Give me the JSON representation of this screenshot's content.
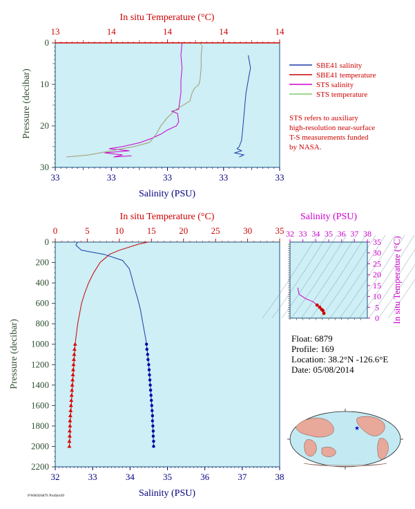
{
  "colors": {
    "plot_bg": "#cdeff5",
    "red": "#cc0000",
    "blue": "#000080",
    "magenta": "#cc00cc",
    "green": "#2e4d2e",
    "light_green": "#7ccc6a",
    "olive": "#a09a70"
  },
  "legend": {
    "items": [
      {
        "label": "SBE41 salinity",
        "color": "#1a3aa8"
      },
      {
        "label": "SBE41 temperature",
        "color": "#cc0000"
      },
      {
        "label": "STS salinity",
        "color": "#cc00cc"
      },
      {
        "label": "STS temperature",
        "color": "#7ccc6a"
      }
    ],
    "note": [
      "STS refers to auxiliary",
      "high-resolution near-surface",
      "T-S measurements funded",
      "by NASA."
    ]
  },
  "float_info": {
    "lines": [
      "Float:  6879",
      "Profile:  169",
      "Location:  38.2°N  -126.6°E",
      "Date:  05/08/2014"
    ]
  },
  "footer_code": "P/WHOI/6879 /Profile169",
  "chart_data": [
    {
      "id": "near-surface",
      "type": "line",
      "top_axis_label": "In situ Temperature (°C)",
      "top_ticks": [
        "13",
        "14",
        "14",
        "14",
        "14"
      ],
      "bottom_axis_label": "Salinity (PSU)",
      "bottom_ticks": [
        "33",
        "33",
        "33",
        "33",
        "33"
      ],
      "ylabel": "Pressure (decibar)",
      "y_ticks": [
        "0",
        "10",
        "20",
        "30"
      ],
      "ylim": [
        0,
        30
      ],
      "series": [
        {
          "name": "SBE41 salinity",
          "color": "#1a3aa8",
          "axis": "x",
          "x_range": [
            0,
            1
          ],
          "points": [
            [
              0.86,
              3
            ],
            [
              0.87,
              6
            ],
            [
              0.86,
              9
            ],
            [
              0.85,
              12
            ],
            [
              0.845,
              15
            ],
            [
              0.84,
              18
            ],
            [
              0.835,
              21
            ],
            [
              0.83,
              23.5
            ],
            [
              0.82,
              25
            ],
            [
              0.81,
              25.5
            ],
            [
              0.83,
              26
            ],
            [
              0.8,
              26.5
            ],
            [
              0.84,
              27
            ],
            [
              0.82,
              27.5
            ]
          ]
        },
        {
          "name": "STS salinity",
          "color": "#cc00cc",
          "axis": "x",
          "x_range": [
            0,
            1
          ],
          "points": [
            [
              0.565,
              0
            ],
            [
              0.56,
              3
            ],
            [
              0.565,
              6
            ],
            [
              0.56,
              9
            ],
            [
              0.56,
              12
            ],
            [
              0.555,
              14
            ],
            [
              0.55,
              16
            ],
            [
              0.52,
              16.5
            ],
            [
              0.545,
              17
            ],
            [
              0.55,
              19
            ],
            [
              0.54,
              20
            ],
            [
              0.5,
              21
            ],
            [
              0.47,
              22
            ],
            [
              0.43,
              23
            ],
            [
              0.38,
              24
            ],
            [
              0.3,
              25
            ],
            [
              0.24,
              25.5
            ],
            [
              0.33,
              26
            ],
            [
              0.22,
              26.5
            ],
            [
              0.3,
              27
            ],
            [
              0.26,
              27.5
            ],
            [
              0.34,
              27.2
            ]
          ]
        },
        {
          "name": "STS temperature",
          "color": "#7ccc6a",
          "axis": "x",
          "x_range": [
            0,
            1
          ],
          "points": [
            [
              0.645,
              0
            ],
            [
              0.65,
              0.5
            ]
          ]
        },
        {
          "name": "STS temperature",
          "color": "#a09a70",
          "axis": "x",
          "x_range": [
            0,
            1
          ],
          "points": [
            [
              0.655,
              0.5
            ],
            [
              0.65,
              3
            ],
            [
              0.65,
              6
            ],
            [
              0.645,
              9
            ],
            [
              0.64,
              10
            ],
            [
              0.62,
              11
            ],
            [
              0.61,
              12
            ],
            [
              0.6,
              14
            ],
            [
              0.57,
              15
            ],
            [
              0.54,
              16
            ],
            [
              0.52,
              17
            ],
            [
              0.5,
              18
            ],
            [
              0.47,
              20
            ],
            [
              0.45,
              22
            ],
            [
              0.42,
              24
            ],
            [
              0.35,
              25
            ],
            [
              0.25,
              26
            ],
            [
              0.15,
              27
            ],
            [
              0.05,
              27.5
            ]
          ]
        },
        {
          "name": "SBE41 temperature",
          "color": "#cc0000",
          "axis": "x",
          "x_range": [
            0,
            1
          ],
          "points": [
            [
              0,
              0
            ],
            [
              1,
              0
            ]
          ]
        }
      ]
    },
    {
      "id": "full-profile",
      "type": "line",
      "top_axis_label": "In situ Temperature (°C)",
      "top_ticks": [
        "0",
        "5",
        "10",
        "15",
        "20",
        "25",
        "30",
        "35"
      ],
      "xlim_temp": [
        0,
        35
      ],
      "bottom_axis_label": "Salinity (PSU)",
      "bottom_ticks": [
        "32",
        "33",
        "34",
        "35",
        "36",
        "37",
        "38"
      ],
      "xlim_sal": [
        32,
        38
      ],
      "ylabel": "Pressure (decibar)",
      "y_ticks": [
        "0",
        "200",
        "400",
        "600",
        "800",
        "1000",
        "1200",
        "1400",
        "1600",
        "1800",
        "2000",
        "2200"
      ],
      "ylim": [
        0,
        2200
      ],
      "series": [
        {
          "name": "Temperature",
          "color": "#cc0000",
          "axis": "temp",
          "points": [
            [
              14.5,
              0
            ],
            [
              13,
              20
            ],
            [
              10,
              80
            ],
            [
              8.5,
              120
            ],
            [
              7,
              200
            ],
            [
              6,
              300
            ],
            [
              5.2,
              400
            ],
            [
              4.6,
              500
            ],
            [
              4.1,
              600
            ],
            [
              3.8,
              700
            ],
            [
              3.5,
              800
            ],
            [
              3.3,
              900
            ],
            [
              3.1,
              1000
            ],
            [
              3.0,
              1100
            ],
            [
              2.9,
              1200
            ],
            [
              2.8,
              1300
            ],
            [
              2.7,
              1400
            ],
            [
              2.6,
              1500
            ],
            [
              2.5,
              1600
            ],
            [
              2.4,
              1700
            ],
            [
              2.3,
              1800
            ],
            [
              2.3,
              1900
            ],
            [
              2.2,
              2000
            ]
          ]
        },
        {
          "name": "Salinity",
          "color": "#1a3aa8",
          "axis": "sal",
          "points": [
            [
              32.6,
              0
            ],
            [
              32.55,
              30
            ],
            [
              32.7,
              80
            ],
            [
              33.3,
              120
            ],
            [
              33.8,
              180
            ],
            [
              33.98,
              260
            ],
            [
              34.05,
              350
            ],
            [
              34.12,
              450
            ],
            [
              34.2,
              550
            ],
            [
              34.27,
              650
            ],
            [
              34.32,
              750
            ],
            [
              34.37,
              850
            ],
            [
              34.42,
              950
            ],
            [
              34.44,
              1000
            ],
            [
              34.47,
              1100
            ],
            [
              34.5,
              1200
            ],
            [
              34.52,
              1300
            ],
            [
              34.54,
              1400
            ],
            [
              34.56,
              1500
            ],
            [
              34.58,
              1600
            ],
            [
              34.6,
              1700
            ],
            [
              34.61,
              1800
            ],
            [
              34.62,
              1900
            ],
            [
              34.63,
              2000
            ]
          ]
        }
      ],
      "markers": {
        "temp": [
          [
            3.1,
            1000
          ],
          [
            3.0,
            1050
          ],
          [
            2.95,
            1100
          ],
          [
            2.9,
            1150
          ],
          [
            2.85,
            1200
          ],
          [
            2.8,
            1250
          ],
          [
            2.75,
            1300
          ],
          [
            2.7,
            1350
          ],
          [
            2.65,
            1400
          ],
          [
            2.6,
            1450
          ],
          [
            2.55,
            1500
          ],
          [
            2.5,
            1550
          ],
          [
            2.45,
            1600
          ],
          [
            2.4,
            1650
          ],
          [
            2.35,
            1700
          ],
          [
            2.3,
            1750
          ],
          [
            2.3,
            1800
          ],
          [
            2.25,
            1850
          ],
          [
            2.25,
            1900
          ],
          [
            2.2,
            1950
          ],
          [
            2.2,
            2000
          ]
        ],
        "sal": [
          [
            34.44,
            1000
          ],
          [
            34.45,
            1050
          ],
          [
            34.47,
            1100
          ],
          [
            34.48,
            1150
          ],
          [
            34.5,
            1200
          ],
          [
            34.51,
            1250
          ],
          [
            34.52,
            1300
          ],
          [
            34.53,
            1350
          ],
          [
            34.54,
            1400
          ],
          [
            34.55,
            1450
          ],
          [
            34.56,
            1500
          ],
          [
            34.57,
            1550
          ],
          [
            34.58,
            1600
          ],
          [
            34.59,
            1650
          ],
          [
            34.6,
            1700
          ],
          [
            34.6,
            1750
          ],
          [
            34.61,
            1800
          ],
          [
            34.62,
            1850
          ],
          [
            34.62,
            1900
          ],
          [
            34.63,
            1950
          ],
          [
            34.63,
            2000
          ]
        ]
      }
    },
    {
      "id": "ts-diagram",
      "type": "scatter",
      "top_axis_label": "Salinity (PSU)",
      "top_ticks": [
        "32",
        "33",
        "34",
        "35",
        "36",
        "37",
        "38"
      ],
      "xlim": [
        32,
        38
      ],
      "right_axis_label": "In situ Temperature (°C)",
      "right_ticks": [
        "0",
        "5",
        "10",
        "15",
        "20",
        "25",
        "30",
        "35"
      ],
      "ylim": [
        0,
        35
      ],
      "points": [
        [
          32.6,
          14
        ],
        [
          32.7,
          11
        ],
        [
          33.2,
          9
        ],
        [
          33.8,
          7.5
        ],
        [
          34.1,
          6
        ],
        [
          34.3,
          5
        ],
        [
          34.45,
          4
        ],
        [
          34.55,
          3.5
        ],
        [
          34.63,
          2.2
        ]
      ],
      "color": "#cc0000",
      "line_color": "#cc00cc"
    }
  ]
}
